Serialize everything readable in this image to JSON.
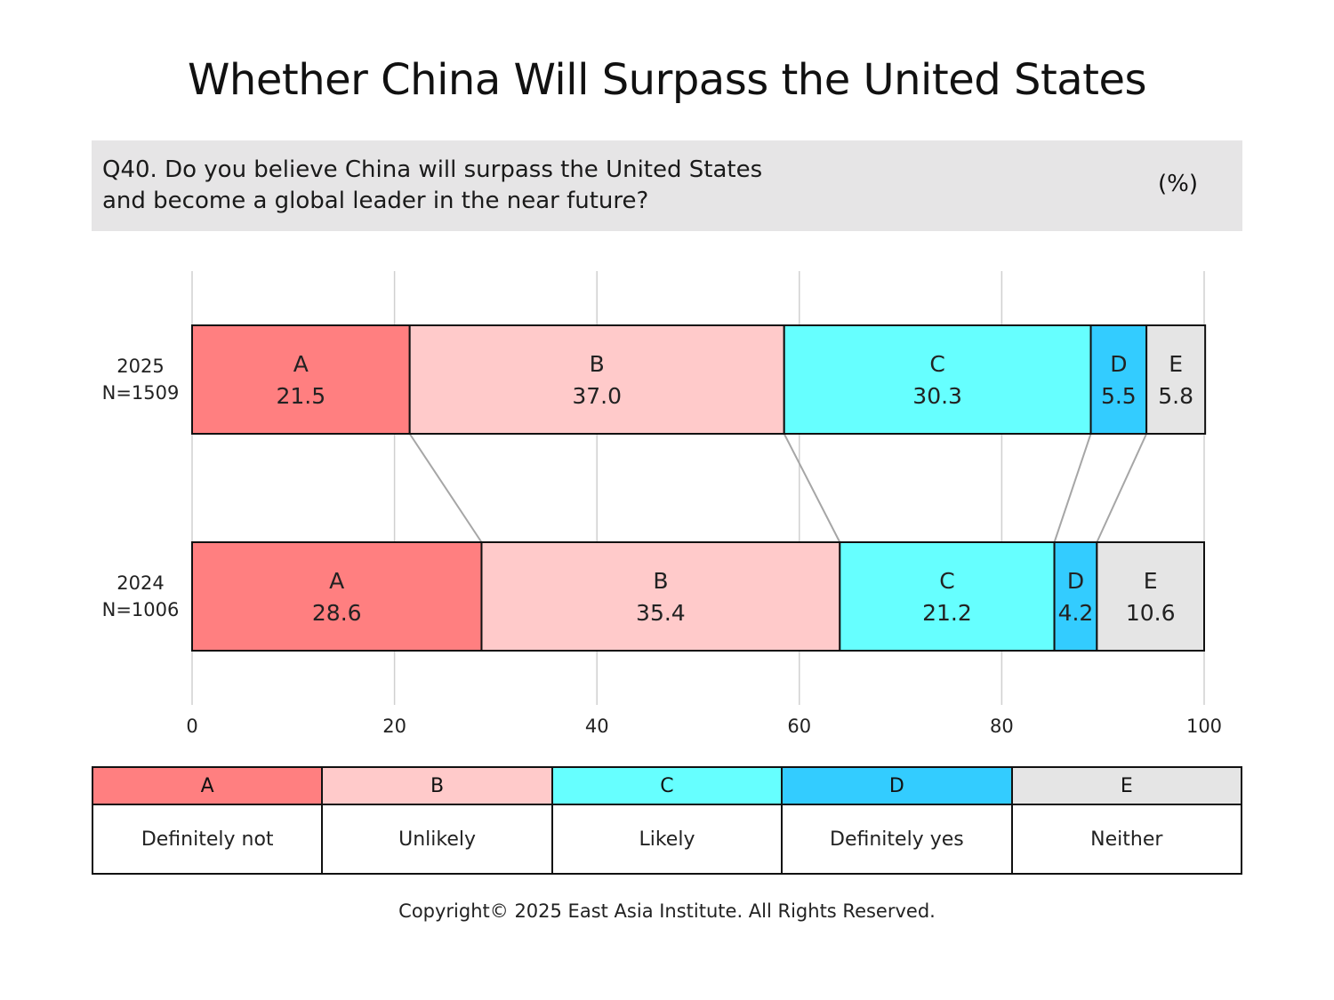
{
  "title": "Whether China Will Surpass the United States",
  "question": {
    "line1": "Q40. Do you believe China will surpass the United States",
    "line2": "and become a global leader in the near future?",
    "unit": "(%)"
  },
  "chart_data": {
    "type": "bar",
    "orientation": "horizontal",
    "stacked": true,
    "xlim": [
      0,
      100
    ],
    "x_ticks": [
      "0",
      "20",
      "40",
      "60",
      "80",
      "100"
    ],
    "grid": true,
    "rows": [
      {
        "year": "2025",
        "n": "N=1509",
        "segments": [
          {
            "key": "A",
            "value": 21.5,
            "label": "21.5"
          },
          {
            "key": "B",
            "value": 37.0,
            "label": "37.0"
          },
          {
            "key": "C",
            "value": 30.3,
            "label": "30.3"
          },
          {
            "key": "D",
            "value": 5.5,
            "label": "5.5"
          },
          {
            "key": "E",
            "value": 5.8,
            "label": "5.8"
          }
        ]
      },
      {
        "year": "2024",
        "n": "N=1006",
        "segments": [
          {
            "key": "A",
            "value": 28.6,
            "label": "28.6"
          },
          {
            "key": "B",
            "value": 35.4,
            "label": "35.4"
          },
          {
            "key": "C",
            "value": 21.2,
            "label": "21.2"
          },
          {
            "key": "D",
            "value": 4.2,
            "label": "4.2"
          },
          {
            "key": "E",
            "value": 10.6,
            "label": "10.6"
          }
        ]
      }
    ],
    "colors": {
      "A": "#ff7f80",
      "B": "#ffcaca",
      "C": "#66ffff",
      "D": "#33ccff",
      "E": "#e5e5e5"
    }
  },
  "legend": [
    {
      "key": "A",
      "label": "Definitely not"
    },
    {
      "key": "B",
      "label": "Unlikely"
    },
    {
      "key": "C",
      "label": "Likely"
    },
    {
      "key": "D",
      "label": "Definitely yes"
    },
    {
      "key": "E",
      "label": "Neither"
    }
  ],
  "copyright": "Copyright© 2025 East Asia Institute. All Rights Reserved."
}
